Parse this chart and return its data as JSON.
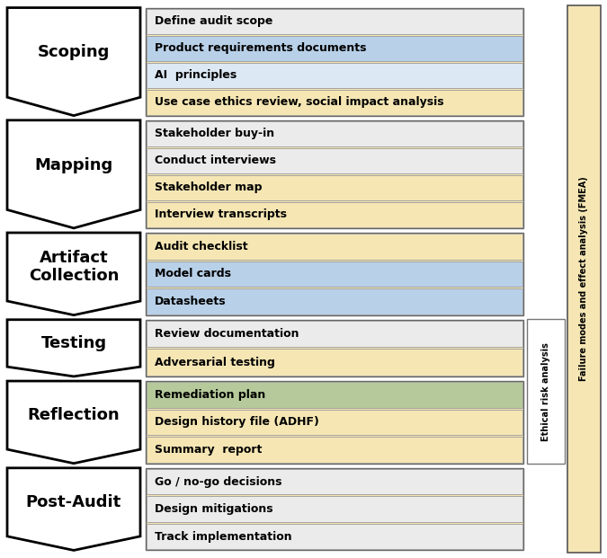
{
  "stages": [
    {
      "label": "Scoping",
      "items": [
        {
          "text": "Define audit scope",
          "color": "#ebebeb"
        },
        {
          "text": "Product requirements documents",
          "color": "#b8d0e8"
        },
        {
          "text": "AI  principles",
          "color": "#dce8f3"
        },
        {
          "text": "Use case ethics review, social impact analysis",
          "color": "#f5e6b4"
        }
      ],
      "side_bar": null
    },
    {
      "label": "Mapping",
      "items": [
        {
          "text": "Stakeholder buy-in",
          "color": "#ebebeb"
        },
        {
          "text": "Conduct interviews",
          "color": "#ebebeb"
        },
        {
          "text": "Stakeholder map",
          "color": "#f5e6b4"
        },
        {
          "text": "Interview transcripts",
          "color": "#f5e6b4"
        }
      ],
      "side_bar": null
    },
    {
      "label": "Artifact\nCollection",
      "items": [
        {
          "text": "Audit checklist",
          "color": "#f5e6b4"
        },
        {
          "text": "Model cards",
          "color": "#b8d0e8"
        },
        {
          "text": "Datasheets",
          "color": "#b8d0e8"
        }
      ],
      "side_bar": null
    },
    {
      "label": "Testing",
      "items": [
        {
          "text": "Review documentation",
          "color": "#ebebeb"
        },
        {
          "text": "Adversarial testing",
          "color": "#f5e6b4"
        }
      ],
      "side_bar": "ethical"
    },
    {
      "label": "Reflection",
      "items": [
        {
          "text": "Remediation plan",
          "color": "#b5c99a"
        },
        {
          "text": "Design history file (ADHF)",
          "color": "#f5e6b4"
        },
        {
          "text": "Summary  report",
          "color": "#f5e6b4"
        }
      ],
      "side_bar": "ethical"
    },
    {
      "label": "Post-Audit",
      "items": [
        {
          "text": "Go / no-go decisions",
          "color": "#ebebeb"
        },
        {
          "text": "Design mitigations",
          "color": "#ebebeb"
        },
        {
          "text": "Track implementation",
          "color": "#ebebeb"
        }
      ],
      "side_bar": null
    }
  ],
  "fmea_label": "Failure modes and effect analysis (FMEA)",
  "ethical_label": "Ethical risk analysis",
  "item_fontsize": 9.0,
  "label_fontsize": 13
}
